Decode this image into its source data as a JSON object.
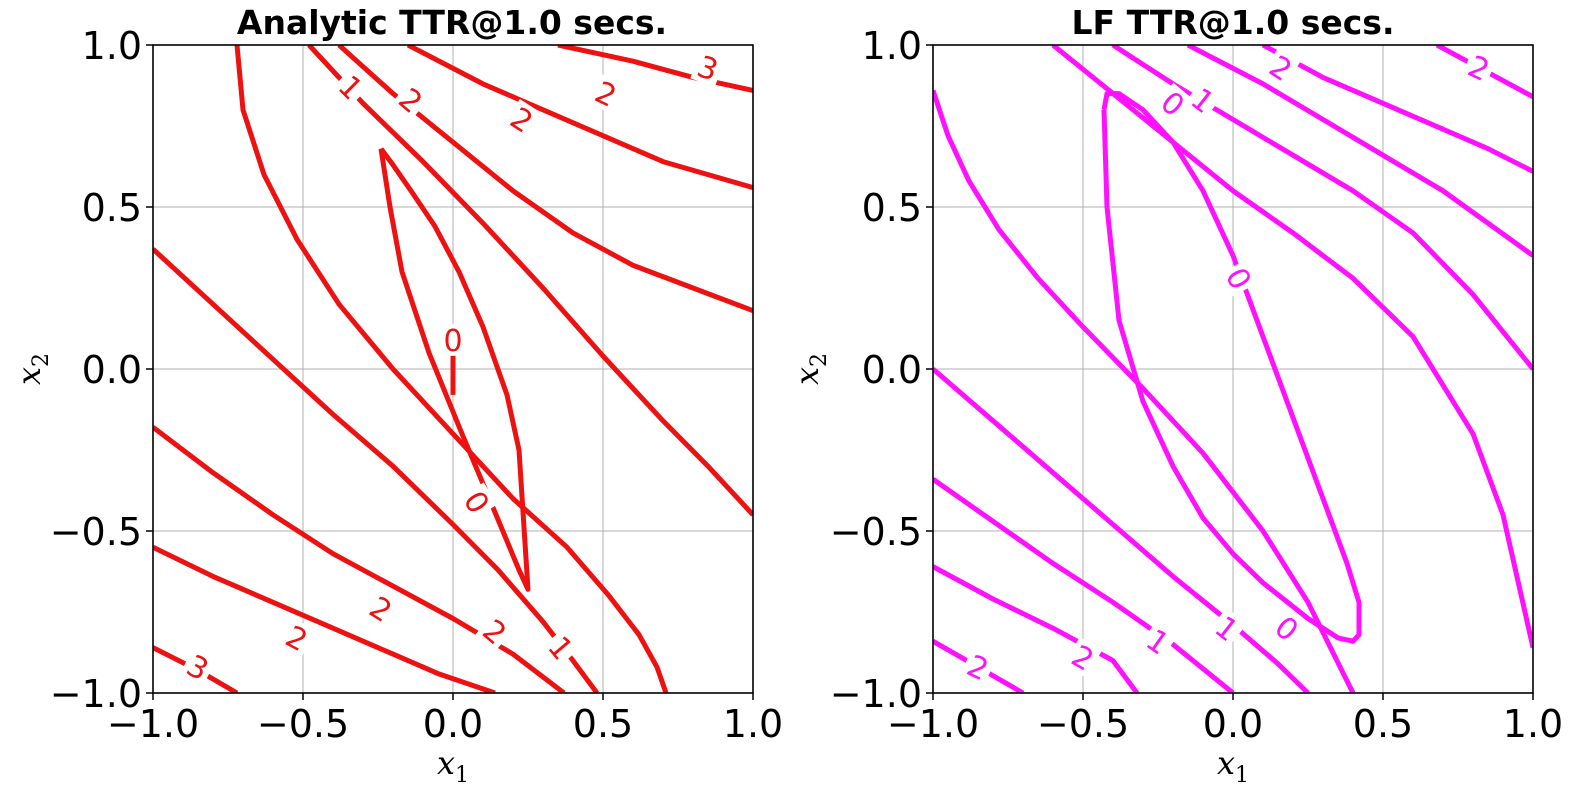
{
  "chart_data": [
    {
      "type": "line",
      "title": "Analytic TTR@1.0 secs.",
      "xlabel": "x",
      "xlabel_sub": "1",
      "ylabel": "x",
      "ylabel_sub": "2",
      "xlim": [
        -1.0,
        1.0
      ],
      "ylim": [
        -1.0,
        1.0
      ],
      "xticks": [
        "−1.0",
        "−0.5",
        "0.0",
        "0.5",
        "1.0"
      ],
      "yticks": [
        "−1.0",
        "−0.5",
        "0.0",
        "0.5",
        "1.0"
      ],
      "grid": true,
      "color": "#ee1111",
      "series": [
        {
          "x": [
            0.0,
            0.0
          ],
          "y": [
            0.05,
            -0.08
          ]
        },
        {
          "x": [
            -0.24,
            -0.2,
            -0.14,
            -0.06,
            0.02,
            0.1,
            0.18,
            0.22,
            0.25,
            0.22,
            0.13,
            0.03,
            -0.08,
            -0.17,
            -0.21,
            -0.24
          ],
          "y": [
            0.68,
            0.63,
            0.55,
            0.44,
            0.3,
            0.13,
            -0.08,
            -0.25,
            -0.68,
            -0.62,
            -0.42,
            -0.2,
            0.05,
            0.3,
            0.5,
            0.68
          ]
        },
        {
          "x": [
            -0.72,
            -0.7,
            -0.63,
            -0.52,
            -0.38,
            -0.2,
            0.0,
            0.2,
            0.38,
            0.52,
            0.62,
            0.68,
            0.71
          ],
          "y": [
            1.0,
            0.8,
            0.6,
            0.4,
            0.2,
            0.0,
            -0.2,
            -0.4,
            -0.55,
            -0.7,
            -0.82,
            -0.92,
            -1.0
          ]
        },
        {
          "x": [
            -0.48,
            -0.3,
            -0.1,
            0.1,
            0.3,
            0.5,
            0.7,
            0.85,
            1.0
          ],
          "y": [
            1.0,
            0.82,
            0.64,
            0.45,
            0.25,
            0.04,
            -0.16,
            -0.3,
            -0.45
          ]
        },
        {
          "x": [
            -0.38,
            -0.2,
            0.0,
            0.2,
            0.4,
            0.6,
            0.8,
            1.0
          ],
          "y": [
            1.0,
            0.85,
            0.7,
            0.55,
            0.42,
            0.32,
            0.25,
            0.18
          ]
        },
        {
          "x": [
            -0.15,
            0.1,
            0.3,
            0.5,
            0.7,
            0.85,
            1.0
          ],
          "y": [
            1.0,
            0.88,
            0.8,
            0.72,
            0.64,
            0.6,
            0.56
          ]
        },
        {
          "x": [
            0.35,
            0.6,
            0.8,
            1.0
          ],
          "y": [
            1.0,
            0.95,
            0.9,
            0.86
          ]
        },
        {
          "x": [
            -1.0,
            -0.8,
            -0.6,
            -0.4,
            -0.2,
            0.0,
            0.15,
            0.3,
            0.4,
            0.48
          ],
          "y": [
            0.37,
            0.2,
            0.03,
            -0.14,
            -0.3,
            -0.48,
            -0.62,
            -0.78,
            -0.9,
            -1.0
          ]
        },
        {
          "x": [
            -1.0,
            -0.8,
            -0.6,
            -0.4,
            -0.2,
            0.0,
            0.2,
            0.37
          ],
          "y": [
            -0.18,
            -0.32,
            -0.45,
            -0.57,
            -0.67,
            -0.77,
            -0.88,
            -1.0
          ]
        },
        {
          "x": [
            -1.0,
            -0.8,
            -0.6,
            -0.4,
            -0.2,
            -0.05,
            0.14
          ],
          "y": [
            -0.55,
            -0.64,
            -0.72,
            -0.8,
            -0.88,
            -0.94,
            -1.0
          ]
        },
        {
          "x": [
            -1.0,
            -0.85,
            -0.72
          ],
          "y": [
            -0.86,
            -0.93,
            -1.0
          ]
        }
      ],
      "labels": [
        {
          "text": "0",
          "x": 0.0,
          "y": 0.09,
          "rot": 0
        },
        {
          "text": "0",
          "x": 0.08,
          "y": -0.41,
          "rot": 58
        },
        {
          "text": "1",
          "x": -0.34,
          "y": 0.87,
          "rot": 45
        },
        {
          "text": "1",
          "x": 0.36,
          "y": -0.86,
          "rot": 50
        },
        {
          "text": "2",
          "x": -0.14,
          "y": 0.83,
          "rot": 40
        },
        {
          "text": "2",
          "x": 0.23,
          "y": 0.77,
          "rot": 33
        },
        {
          "text": "2",
          "x": 0.51,
          "y": 0.85,
          "rot": 25
        },
        {
          "text": "2",
          "x": -0.24,
          "y": -0.74,
          "rot": 32
        },
        {
          "text": "2",
          "x": -0.52,
          "y": -0.83,
          "rot": 28
        },
        {
          "text": "2",
          "x": 0.14,
          "y": -0.81,
          "rot": 40
        },
        {
          "text": "3",
          "x": 0.85,
          "y": 0.93,
          "rot": 20
        },
        {
          "text": "3",
          "x": -0.85,
          "y": -0.92,
          "rot": 28
        }
      ]
    },
    {
      "type": "line",
      "title": "LF TTR@1.0 secs.",
      "xlabel": "x",
      "xlabel_sub": "1",
      "ylabel": "x",
      "ylabel_sub": "2",
      "xlim": [
        -1.0,
        1.0
      ],
      "ylim": [
        -1.0,
        1.0
      ],
      "xticks": [
        "−1.0",
        "−0.5",
        "0.0",
        "0.5",
        "1.0"
      ],
      "yticks": [
        "−1.0",
        "−0.5",
        "0.0",
        "0.5",
        "1.0"
      ],
      "grid": true,
      "color": "#ff11ff",
      "series": [
        {
          "x": [
            -0.43,
            -0.42,
            -0.38,
            -0.3,
            -0.2,
            -0.1,
            0.0,
            0.1,
            0.2,
            0.3,
            0.38,
            0.42,
            0.42,
            0.4,
            0.35,
            0.25,
            0.1,
            0.0,
            -0.1,
            -0.2,
            -0.3,
            -0.38,
            -0.42,
            -0.43
          ],
          "y": [
            0.8,
            0.85,
            0.85,
            0.8,
            0.7,
            0.55,
            0.35,
            0.1,
            -0.15,
            -0.4,
            -0.6,
            -0.72,
            -0.82,
            -0.84,
            -0.83,
            -0.77,
            -0.66,
            -0.57,
            -0.46,
            -0.3,
            -0.1,
            0.15,
            0.5,
            0.8
          ]
        },
        {
          "x": [
            -1.0,
            -0.95,
            -0.88,
            -0.78,
            -0.65,
            -0.5,
            -0.3,
            -0.1,
            0.1,
            0.25,
            0.4
          ],
          "y": [
            0.86,
            0.72,
            0.58,
            0.43,
            0.28,
            0.13,
            -0.06,
            -0.26,
            -0.5,
            -0.72,
            -1.0
          ]
        },
        {
          "x": [
            -0.6,
            -0.4,
            -0.2,
            0.0,
            0.2,
            0.4,
            0.6,
            0.8,
            0.9,
            1.0
          ],
          "y": [
            1.0,
            0.85,
            0.7,
            0.55,
            0.42,
            0.28,
            0.1,
            -0.2,
            -0.45,
            -0.86
          ]
        },
        {
          "x": [
            -0.4,
            -0.2,
            0.0,
            0.2,
            0.4,
            0.6,
            0.8,
            1.0
          ],
          "y": [
            1.0,
            0.88,
            0.77,
            0.66,
            0.55,
            0.42,
            0.23,
            0.0
          ]
        },
        {
          "x": [
            -0.15,
            0.1,
            0.3,
            0.5,
            0.7,
            0.85,
            1.0
          ],
          "y": [
            1.0,
            0.88,
            0.77,
            0.66,
            0.55,
            0.45,
            0.35
          ]
        },
        {
          "x": [
            0.1,
            0.3,
            0.5,
            0.7,
            0.85,
            1.0
          ],
          "y": [
            1.0,
            0.9,
            0.82,
            0.74,
            0.68,
            0.61
          ]
        },
        {
          "x": [
            0.68,
            0.8,
            0.9,
            1.0
          ],
          "y": [
            1.0,
            0.94,
            0.89,
            0.84
          ]
        },
        {
          "x": [
            -1.0,
            -0.8,
            -0.6,
            -0.4,
            -0.2,
            0.0,
            0.15,
            0.25
          ],
          "y": [
            0.0,
            -0.16,
            -0.32,
            -0.48,
            -0.64,
            -0.79,
            -0.91,
            -1.0
          ]
        },
        {
          "x": [
            -1.0,
            -0.8,
            -0.6,
            -0.4,
            -0.2,
            0.0
          ],
          "y": [
            -0.34,
            -0.47,
            -0.6,
            -0.72,
            -0.85,
            -1.0
          ]
        },
        {
          "x": [
            -1.0,
            -0.8,
            -0.6,
            -0.4,
            -0.32
          ],
          "y": [
            -0.61,
            -0.71,
            -0.8,
            -0.9,
            -1.0
          ]
        },
        {
          "x": [
            -1.0,
            -0.85,
            -0.7
          ],
          "y": [
            -0.84,
            -0.92,
            -1.0
          ]
        }
      ],
      "labels": [
        {
          "text": "0",
          "x": -0.2,
          "y": 0.82,
          "rot": 40
        },
        {
          "text": "0",
          "x": 0.02,
          "y": 0.28,
          "rot": 62
        },
        {
          "text": "0",
          "x": 0.18,
          "y": -0.8,
          "rot": 40
        },
        {
          "text": "1",
          "x": -0.1,
          "y": 0.83,
          "rot": 38
        },
        {
          "text": "1",
          "x": -0.02,
          "y": -0.8,
          "rot": 38
        },
        {
          "text": "1",
          "x": -0.25,
          "y": -0.84,
          "rot": 35
        },
        {
          "text": "2",
          "x": 0.16,
          "y": 0.93,
          "rot": 33
        },
        {
          "text": "2",
          "x": 0.82,
          "y": 0.93,
          "rot": 25
        },
        {
          "text": "2",
          "x": -0.5,
          "y": -0.89,
          "rot": 30
        },
        {
          "text": "2",
          "x": -0.85,
          "y": -0.92,
          "rot": 25
        }
      ]
    }
  ]
}
